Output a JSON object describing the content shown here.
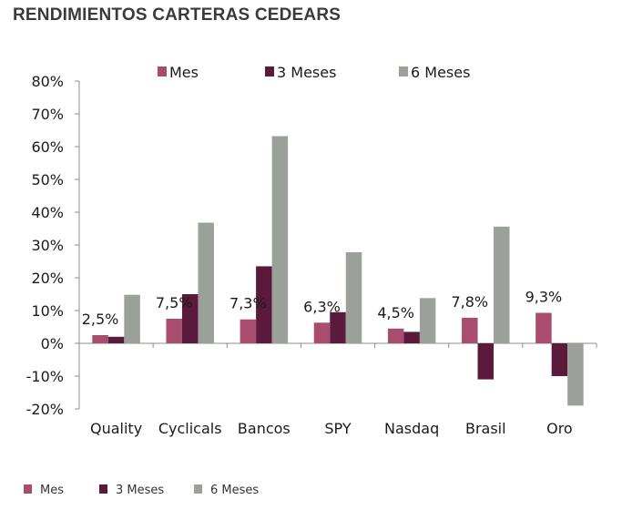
{
  "chart_data": {
    "type": "bar",
    "title": "RENDIMIENTOS CARTERAS CEDEARS",
    "categories": [
      "Quality",
      "Cyclicals",
      "Bancos",
      "SPY",
      "Nasdaq",
      "Brasil",
      "Oro"
    ],
    "series": [
      {
        "name": "Mes",
        "color": "#a84d6e",
        "values": [
          2.5,
          7.5,
          7.3,
          6.3,
          4.5,
          7.8,
          9.3
        ]
      },
      {
        "name": "3 Meses",
        "color": "#5b1a3c",
        "values": [
          2.0,
          15.0,
          23.5,
          9.5,
          3.5,
          -11.0,
          -10.0
        ]
      },
      {
        "name": "6 Meses",
        "color": "#9ba19a",
        "values": [
          14.8,
          36.8,
          63.2,
          27.8,
          13.8,
          35.6,
          -19.0
        ]
      }
    ],
    "data_labels": [
      "2,5%",
      "7,5%",
      "7,3%",
      "6,3%",
      "4,5%",
      "7,8%",
      "9,3%"
    ],
    "y_ticks": [
      "80%",
      "70%",
      "60%",
      "50%",
      "40%",
      "30%",
      "20%",
      "10%",
      "0%",
      "-10%",
      "-20%"
    ],
    "ylim": [
      -20,
      80
    ],
    "ystep": 10,
    "xlabel": "",
    "ylabel": "",
    "grid": false,
    "legend_placement": "top and bottom"
  }
}
